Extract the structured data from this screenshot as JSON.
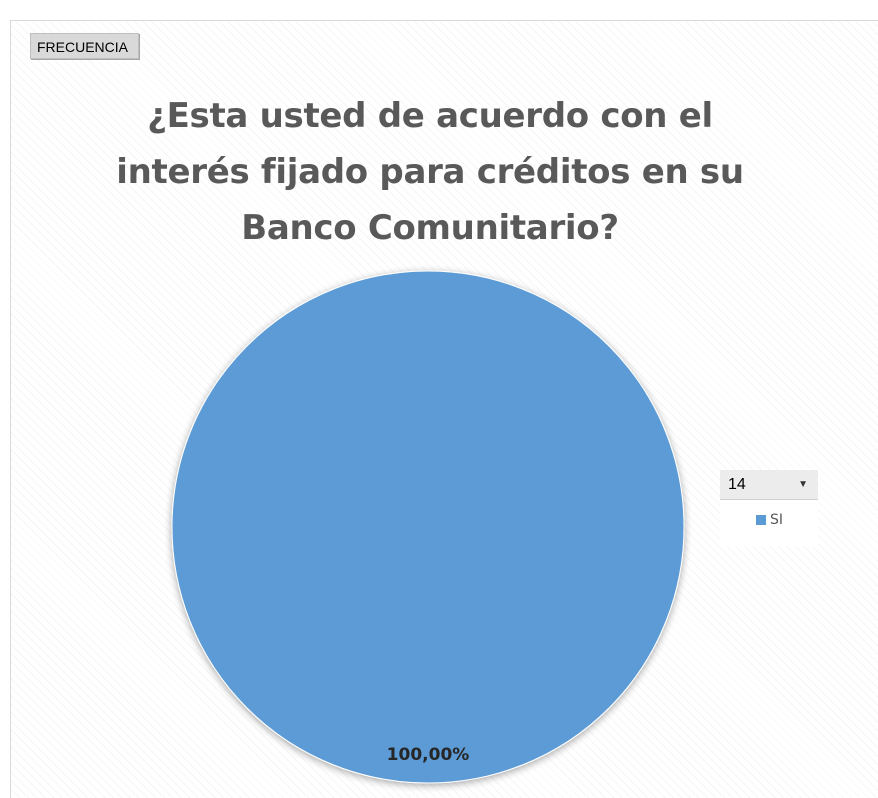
{
  "field_button": {
    "label": "FRECUENCIA"
  },
  "colors": {
    "slice": "#5b9bd5",
    "slice_edge": "#ffffff"
  },
  "chart_data": {
    "type": "pie",
    "title": "¿Esta usted de acuerdo con el interés fijado para créditos en su Banco Comunitario?",
    "legend_position": "right",
    "legend_filter_value": "14",
    "slices": [
      {
        "label": "SI",
        "value": 100,
        "data_label": "100,00%"
      }
    ]
  }
}
